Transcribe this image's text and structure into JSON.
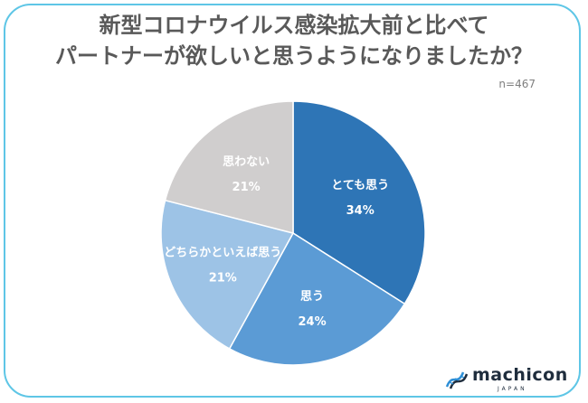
{
  "chart_data": {
    "type": "pie",
    "title_lines": [
      "新型コロナウイルス感染拡大前と比べて",
      "パートナーが欲しいと思うようになりましたか？"
    ],
    "note": "n=467",
    "slices": [
      {
        "label": "とても思う",
        "value": 34,
        "value_label": "34%",
        "color": "#2e75b6",
        "text_color": "#ffffff"
      },
      {
        "label": "思う",
        "value": 24,
        "value_label": "24%",
        "color": "#5b9bd5",
        "text_color": "#ffffff"
      },
      {
        "label": "どちらかといえば思う",
        "value": 21,
        "value_label": "21%",
        "color": "#9dc3e6",
        "text_color": "#ffffff"
      },
      {
        "label": "思わない",
        "value": 21,
        "value_label": "21%",
        "color": "#d0cece",
        "text_color": "#ffffff"
      }
    ],
    "start": "12 o'clock",
    "direction": "clockwise"
  },
  "brand": {
    "name": "machicon",
    "sub": "JAPAN",
    "icon": "dna-helix-icon",
    "color": "#1f2d3d",
    "accent": "#2e8fd6"
  },
  "frame_color": "#5ec6e6"
}
